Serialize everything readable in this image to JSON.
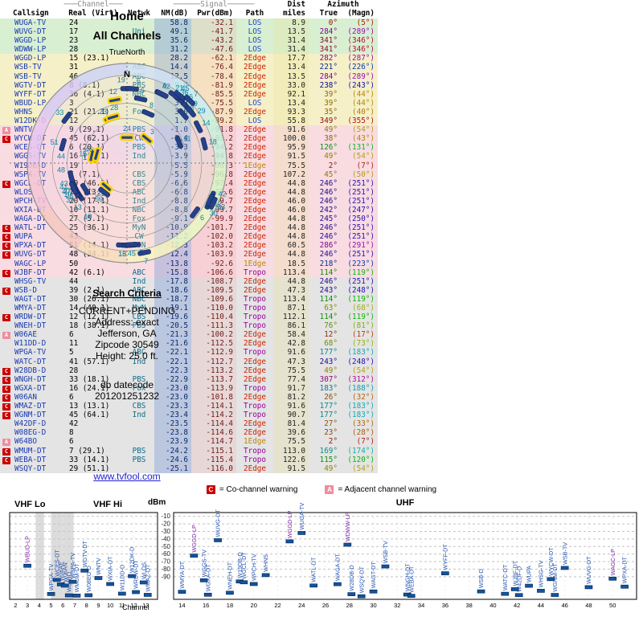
{
  "radar": {
    "title_line1": "Home",
    "title_line2": "All Channels",
    "north_label": "TrueNorth",
    "compass_n": "N"
  },
  "search": {
    "heading": "Search Criteria",
    "lines": [
      "CURRENT+PENDING",
      "Address: exact",
      "Jefferson, GA",
      "Zipcode 30549",
      "Height: 25.0 ft."
    ],
    "db_label": "db datecode",
    "db_value": "201201251232",
    "link": "www.tvfool.com"
  },
  "table": {
    "group": {
      "channel_group": "───Channel───",
      "signal_group": "──────Signal──────",
      "dist_group": "Dist",
      "azimuth_group": "Azimuth"
    },
    "columns": [
      "Callsign",
      "Real (Virt)",
      "Netwk",
      "NM(dB)",
      "Pwr(dBm)",
      "Path",
      "miles",
      "True",
      "(Magn)"
    ],
    "rows": [
      {
        "callsign": "WUGA-TV",
        "channel": "24",
        "network": "",
        "nm_db": "58.8",
        "pwr_dbm": "-32.1",
        "path": "LOS",
        "dist_miles": "8.9",
        "az_true": "0°",
        "az_magn": "(5°)",
        "warning": ""
      },
      {
        "callsign": "WUVG-DT",
        "channel": "17",
        "network": "Uni",
        "nm_db": "49.1",
        "pwr_dbm": "-41.7",
        "path": "LOS",
        "dist_miles": "13.5",
        "az_true": "284°",
        "az_magn": "(289°)",
        "warning": ""
      },
      {
        "callsign": "WGGD-LP",
        "channel": "23",
        "network": "",
        "nm_db": "35.6",
        "pwr_dbm": "-43.2",
        "path": "LOS",
        "dist_miles": "31.4",
        "az_true": "341°",
        "az_magn": "(346°)",
        "warning": ""
      },
      {
        "callsign": "WDWW-LP",
        "channel": "28",
        "network": "",
        "nm_db": "31.2",
        "pwr_dbm": "-47.6",
        "path": "LOS",
        "dist_miles": "31.4",
        "az_true": "341°",
        "az_magn": "(346°)",
        "warning": ""
      },
      {
        "callsign": "WGGD-LP",
        "channel": "15 (23.1)",
        "network": "",
        "nm_db": "28.2",
        "pwr_dbm": "-62.1",
        "path": "2Edge",
        "dist_miles": "17.7",
        "az_true": "282°",
        "az_magn": "(287°)",
        "warning": ""
      },
      {
        "callsign": "WSB-TV",
        "channel": "31",
        "network": "ABC",
        "nm_db": "14.4",
        "pwr_dbm": "-76.4",
        "path": "2Edge",
        "dist_miles": "13.4",
        "az_true": "221°",
        "az_magn": "(226°)",
        "warning": ""
      },
      {
        "callsign": "WSB-TV",
        "channel": "46",
        "network": "ABC",
        "nm_db": "12.5",
        "pwr_dbm": "-78.4",
        "path": "2Edge",
        "dist_miles": "13.5",
        "az_true": "284°",
        "az_magn": "(289°)",
        "warning": ""
      },
      {
        "callsign": "WGTV-DT",
        "channel": "8 (8.1)",
        "network": "PBS",
        "nm_db": "9.0",
        "pwr_dbm": "-81.9",
        "path": "2Edge",
        "dist_miles": "33.0",
        "az_true": "238°",
        "az_magn": "(243°)",
        "warning": ""
      },
      {
        "callsign": "WYFF-DT",
        "channel": "36 (4.1)",
        "network": "NBC",
        "nm_db": "5.3",
        "pwr_dbm": "-85.5",
        "path": "2Edge",
        "dist_miles": "92.1",
        "az_true": "39°",
        "az_magn": "(44°)",
        "warning": ""
      },
      {
        "callsign": "WBUD-LP",
        "channel": "3",
        "network": "",
        "nm_db": "3.3",
        "pwr_dbm": "-75.5",
        "path": "LOS",
        "dist_miles": "13.4",
        "az_true": "39°",
        "az_magn": "(44°)",
        "warning": ""
      },
      {
        "callsign": "WHNS",
        "channel": "21 (21.1)",
        "network": "Fox",
        "nm_db": "3.0",
        "pwr_dbm": "-87.9",
        "path": "2Edge",
        "dist_miles": "93.3",
        "az_true": "35°",
        "az_magn": "(40°)",
        "warning": ""
      },
      {
        "callsign": "W12DK-D",
        "channel": "12",
        "network": "",
        "nm_db": "1.7",
        "pwr_dbm": "-89.2",
        "path": "LOS",
        "dist_miles": "55.8",
        "az_true": "349°",
        "az_magn": "(355°)",
        "warning": ""
      },
      {
        "callsign": "WNTV",
        "channel": "9 (29.1)",
        "network": "PBS",
        "nm_db": "-1.0",
        "pwr_dbm": "-91.8",
        "path": "2Edge",
        "dist_miles": "91.6",
        "az_true": "49°",
        "az_magn": "(54°)",
        "warning": "A"
      },
      {
        "callsign": "WYCW-DT",
        "channel": "45 (62.1)",
        "network": "CW",
        "nm_db": "-2.4",
        "pwr_dbm": "-93.2",
        "path": "2Edge",
        "dist_miles": "100.0",
        "az_true": "38°",
        "az_magn": "(43°)",
        "warning": "C"
      },
      {
        "callsign": "WCES-DT",
        "channel": "6 (20.1)",
        "network": "PBS",
        "nm_db": "-3.3",
        "pwr_dbm": "-94.2",
        "path": "2Edge",
        "dist_miles": "95.9",
        "az_true": "126°",
        "az_magn": "(131°)",
        "warning": ""
      },
      {
        "callsign": "WGGS-TV",
        "channel": "16 (16.1)",
        "network": "Ind",
        "nm_db": "-3.9",
        "pwr_dbm": "-94.8",
        "path": "2Edge",
        "dist_miles": "91.5",
        "az_true": "49°",
        "az_magn": "(54°)",
        "warning": ""
      },
      {
        "callsign": "W19DB-D",
        "channel": "19",
        "network": "",
        "nm_db": "-5.5",
        "pwr_dbm": "-96.3",
        "path": "1Edge",
        "dist_miles": "75.5",
        "az_true": "2°",
        "az_magn": "(7°)",
        "warning": ""
      },
      {
        "callsign": "WSPA-TV",
        "channel": "7 (7.1)",
        "network": "CBS",
        "nm_db": "-5.9",
        "pwr_dbm": "-96.8",
        "path": "2Edge",
        "dist_miles": "107.2",
        "az_true": "45°",
        "az_magn": "(50°)",
        "warning": ""
      },
      {
        "callsign": "WGCL-DT",
        "channel": "19 (46.1)",
        "network": "CBS",
        "nm_db": "-6.6",
        "pwr_dbm": "-97.4",
        "path": "2Edge",
        "dist_miles": "44.8",
        "az_true": "246°",
        "az_magn": "(251°)",
        "warning": "C"
      },
      {
        "callsign": "WLOS",
        "channel": "13 (13.1)",
        "network": "ABC",
        "nm_db": "-6.8",
        "pwr_dbm": "-97.6",
        "path": "2Edge",
        "dist_miles": "44.8",
        "az_true": "246°",
        "az_magn": "(251°)",
        "warning": ""
      },
      {
        "callsign": "WPCH-TV",
        "channel": "20 (17.1)",
        "network": "Ind",
        "nm_db": "-8.8",
        "pwr_dbm": "-99.7",
        "path": "2Edge",
        "dist_miles": "46.0",
        "az_true": "246°",
        "az_magn": "(251°)",
        "warning": ""
      },
      {
        "callsign": "WXIA-DT",
        "channel": "10 (11.1)",
        "network": "NBC",
        "nm_db": "-8.8",
        "pwr_dbm": "-99.7",
        "path": "2Edge",
        "dist_miles": "46.0",
        "az_true": "242°",
        "az_magn": "(247°)",
        "warning": ""
      },
      {
        "callsign": "WAGA-DT",
        "channel": "27 (5.1)",
        "network": "Fox",
        "nm_db": "-9.1",
        "pwr_dbm": "-99.9",
        "path": "2Edge",
        "dist_miles": "44.8",
        "az_true": "245°",
        "az_magn": "(250°)",
        "warning": ""
      },
      {
        "callsign": "WATL-DT",
        "channel": "25 (36.1)",
        "network": "MyN",
        "nm_db": "-10.9",
        "pwr_dbm": "-101.7",
        "path": "2Edge",
        "dist_miles": "44.8",
        "az_true": "246°",
        "az_magn": "(251°)",
        "warning": "C"
      },
      {
        "callsign": "WUPA",
        "channel": "43",
        "network": "CW",
        "nm_db": "-11.2",
        "pwr_dbm": "-102.0",
        "path": "2Edge",
        "dist_miles": "44.8",
        "az_true": "246°",
        "az_magn": "(251°)",
        "warning": "C"
      },
      {
        "callsign": "WPXA-DT",
        "channel": "51 (14.1)",
        "network": "ION",
        "nm_db": "-12.3",
        "pwr_dbm": "-103.2",
        "path": "2Edge",
        "dist_miles": "60.5",
        "az_true": "286°",
        "az_magn": "(291°)",
        "warning": "C"
      },
      {
        "callsign": "WUVG-DT",
        "channel": "48 (34.1)",
        "network": "Uni",
        "nm_db": "-12.4",
        "pwr_dbm": "-103.9",
        "path": "2Edge",
        "dist_miles": "44.8",
        "az_true": "246°",
        "az_magn": "(251°)",
        "warning": "C"
      },
      {
        "callsign": "WAGC-LP",
        "channel": "50",
        "network": "",
        "nm_db": "-13.8",
        "pwr_dbm": "-92.6",
        "path": "1Edge",
        "dist_miles": "18.5",
        "az_true": "218°",
        "az_magn": "(223°)",
        "warning": ""
      },
      {
        "callsign": "WJBF-DT",
        "channel": "42 (6.1)",
        "network": "ABC",
        "nm_db": "-15.8",
        "pwr_dbm": "-106.6",
        "path": "Tropo",
        "dist_miles": "113.4",
        "az_true": "114°",
        "az_magn": "(119°)",
        "warning": "C"
      },
      {
        "callsign": "WHSG-TV",
        "channel": "44",
        "network": "Ind",
        "nm_db": "-17.8",
        "pwr_dbm": "-108.7",
        "path": "2Edge",
        "dist_miles": "44.8",
        "az_true": "246°",
        "az_magn": "(251°)",
        "warning": ""
      },
      {
        "callsign": "WSB-D",
        "channel": "39 (2.1)",
        "network": "ABC",
        "nm_db": "-18.6",
        "pwr_dbm": "-109.5",
        "path": "2Edge",
        "dist_miles": "47.3",
        "az_true": "243°",
        "az_magn": "(248°)",
        "warning": "C"
      },
      {
        "callsign": "WAGT-DT",
        "channel": "30 (26.1)",
        "network": "NBC",
        "nm_db": "-18.7",
        "pwr_dbm": "-109.6",
        "path": "Tropo",
        "dist_miles": "113.4",
        "az_true": "114°",
        "az_magn": "(119°)",
        "warning": ""
      },
      {
        "callsign": "WMYA-DT",
        "channel": "14 (40.1)",
        "network": "MyN",
        "nm_db": "-19.1",
        "pwr_dbm": "-110.0",
        "path": "Tropo",
        "dist_miles": "87.1",
        "az_true": "63°",
        "az_magn": "(68°)",
        "warning": ""
      },
      {
        "callsign": "WRDW-DT",
        "channel": "12 (12.1)",
        "network": "CBS",
        "nm_db": "-19.6",
        "pwr_dbm": "-110.4",
        "path": "Tropo",
        "dist_miles": "112.1",
        "az_true": "114°",
        "az_magn": "(119°)",
        "warning": "C"
      },
      {
        "callsign": "WNEH-DT",
        "channel": "18 (38.1)",
        "network": "PBS",
        "nm_db": "-20.5",
        "pwr_dbm": "-111.3",
        "path": "Tropo",
        "dist_miles": "86.1",
        "az_true": "76°",
        "az_magn": "(81°)",
        "warning": ""
      },
      {
        "callsign": "W06AE",
        "channel": "6",
        "network": "",
        "nm_db": "-21.3",
        "pwr_dbm": "-100.2",
        "path": "2Edge",
        "dist_miles": "58.4",
        "az_true": "12°",
        "az_magn": "(17°)",
        "warning": "A"
      },
      {
        "callsign": "W11DD-D",
        "channel": "11",
        "network": "",
        "nm_db": "-21.6",
        "pwr_dbm": "-112.5",
        "path": "2Edge",
        "dist_miles": "42.8",
        "az_true": "68°",
        "az_magn": "(73°)",
        "warning": ""
      },
      {
        "callsign": "WPGA-TV",
        "channel": "5",
        "network": "ABC",
        "nm_db": "-22.1",
        "pwr_dbm": "-112.9",
        "path": "Tropo",
        "dist_miles": "91.6",
        "az_true": "177°",
        "az_magn": "(183°)",
        "warning": ""
      },
      {
        "callsign": "WATC-DT",
        "channel": "41 (57.1)",
        "network": "Ind",
        "nm_db": "-22.1",
        "pwr_dbm": "-112.7",
        "path": "2Edge",
        "dist_miles": "47.3",
        "az_true": "243°",
        "az_magn": "(248°)",
        "warning": ""
      },
      {
        "callsign": "W28DB-D",
        "channel": "28",
        "network": "",
        "nm_db": "-22.3",
        "pwr_dbm": "-113.2",
        "path": "2Edge",
        "dist_miles": "75.5",
        "az_true": "49°",
        "az_magn": "(54°)",
        "warning": "C"
      },
      {
        "callsign": "WNGH-DT",
        "channel": "33 (18.1)",
        "network": "PBS",
        "nm_db": "-22.9",
        "pwr_dbm": "-113.7",
        "path": "2Edge",
        "dist_miles": "77.4",
        "az_true": "307°",
        "az_magn": "(312°)",
        "warning": "C"
      },
      {
        "callsign": "WGXA-DT",
        "channel": "16 (24.1)",
        "network": "Fox",
        "nm_db": "-23.0",
        "pwr_dbm": "-113.9",
        "path": "Tropo",
        "dist_miles": "91.7",
        "az_true": "183°",
        "az_magn": "(188°)",
        "warning": "C"
      },
      {
        "callsign": "W06AN",
        "channel": "6",
        "network": "",
        "nm_db": "-23.0",
        "pwr_dbm": "-101.8",
        "path": "2Edge",
        "dist_miles": "81.2",
        "az_true": "26°",
        "az_magn": "(32°)",
        "warning": "C"
      },
      {
        "callsign": "WMAZ-DT",
        "channel": "13 (13.1)",
        "network": "CBS",
        "nm_db": "-23.3",
        "pwr_dbm": "-114.1",
        "path": "Tropo",
        "dist_miles": "91.6",
        "az_true": "177°",
        "az_magn": "(183°)",
        "warning": "C"
      },
      {
        "callsign": "WGNM-DT",
        "channel": "45 (64.1)",
        "network": "Ind",
        "nm_db": "-23.4",
        "pwr_dbm": "-114.2",
        "path": "Tropo",
        "dist_miles": "90.7",
        "az_true": "177°",
        "az_magn": "(183°)",
        "warning": "C"
      },
      {
        "callsign": "W42DF-D",
        "channel": "42",
        "network": "",
        "nm_db": "-23.5",
        "pwr_dbm": "-114.4",
        "path": "2Edge",
        "dist_miles": "81.4",
        "az_true": "27°",
        "az_magn": "(33°)",
        "warning": ""
      },
      {
        "callsign": "W08EG-D",
        "channel": "8",
        "network": "",
        "nm_db": "-23.8",
        "pwr_dbm": "-114.6",
        "path": "2Edge",
        "dist_miles": "39.6",
        "az_true": "23°",
        "az_magn": "(28°)",
        "warning": ""
      },
      {
        "callsign": "W64BO",
        "channel": "6",
        "network": "",
        "nm_db": "-23.9",
        "pwr_dbm": "-114.7",
        "path": "1Edge",
        "dist_miles": "75.5",
        "az_true": "2°",
        "az_magn": "(7°)",
        "warning": "A"
      },
      {
        "callsign": "WMUM-DT",
        "channel": "7 (29.1)",
        "network": "PBS",
        "nm_db": "-24.2",
        "pwr_dbm": "-115.1",
        "path": "Tropo",
        "dist_miles": "113.0",
        "az_true": "169°",
        "az_magn": "(174°)",
        "warning": "C"
      },
      {
        "callsign": "WEBA-DT",
        "channel": "33 (14.1)",
        "network": "PBS",
        "nm_db": "-24.6",
        "pwr_dbm": "-115.4",
        "path": "Tropo",
        "dist_miles": "122.6",
        "az_true": "115°",
        "az_magn": "(120°)",
        "warning": "C"
      },
      {
        "callsign": "WSQY-DT",
        "channel": "29 (51.1)",
        "network": "",
        "nm_db": "-25.1",
        "pwr_dbm": "-116.0",
        "path": "2Edge",
        "dist_miles": "91.5",
        "az_true": "49°",
        "az_magn": "(54°)",
        "warning": ""
      }
    ]
  },
  "legend": {
    "c_badge": "C",
    "c_text": "= Co-channel warning",
    "a_badge": "A",
    "a_text": "= Adjacent channel warning"
  },
  "chart": {
    "vhf_lo": "VHF Lo",
    "vhf_hi": "VHF Hi",
    "uhf": "UHF",
    "dbm_label": "dBm",
    "channel_label": "Channel",
    "y_ticks": [
      -10,
      -20,
      -30,
      -40,
      -50,
      -60,
      -70,
      -80,
      -90
    ],
    "vhf_ticks": [
      2,
      3,
      4,
      5,
      6,
      7,
      8,
      9,
      10,
      11,
      12,
      13
    ],
    "uhf_ticks": [
      14,
      16,
      18,
      20,
      22,
      24,
      26,
      28,
      30,
      32,
      34,
      36,
      38,
      40,
      42,
      44,
      46,
      48,
      50
    ]
  },
  "colors": {
    "path_los": "#2244cc",
    "path_1edge": "#b8860b",
    "path_2edge": "#cc2200",
    "path_tropo": "#990099",
    "warn_c": "#cc0000",
    "warn_a": "#f08ca0",
    "pointer": "#24418c",
    "pointer_highlight": "#ffd400",
    "radar_label": "#0d86a6",
    "station_label_blue": "#2050b0",
    "station_label_purple": "#7b1fa2",
    "tick_fill": "#13549e",
    "sector_colors": [
      "#cfe0f6",
      "#c9ecf2",
      "#c9f2dd",
      "#d4f6c6",
      "#e9f8c2",
      "#f8f3c0",
      "#f8ddba",
      "#f6c8c0",
      "#f4c4d4",
      "#e8c6f0",
      "#d6c8f4",
      "#ccd2f6"
    ]
  }
}
